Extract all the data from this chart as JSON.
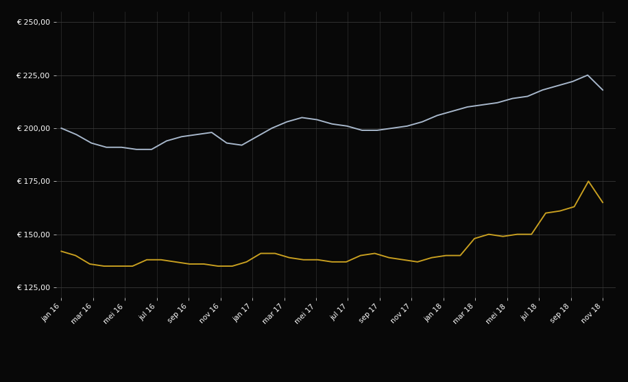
{
  "bg_color": "#080808",
  "plot_bg_color": "#080808",
  "grid_color": "#3a3a3a",
  "x_labels": [
    "jan 16",
    "mar 16",
    "mei 16",
    "jul 16",
    "sep 16",
    "nov 16",
    "jan 17",
    "mar 17",
    "mei 17",
    "jul 17",
    "sep 17",
    "nov 17",
    "jan 18",
    "mar 18",
    "mei 18",
    "jul 18",
    "sep 18",
    "nov 18"
  ],
  "blue_line": [
    200,
    197,
    193,
    191,
    191,
    190,
    190,
    194,
    196,
    197,
    198,
    193,
    192,
    196,
    200,
    203,
    205,
    204,
    202,
    201,
    199,
    199,
    200,
    201,
    203,
    206,
    208,
    210,
    211,
    212,
    214,
    215,
    218,
    220,
    222,
    225,
    218
  ],
  "gold_line": [
    142,
    140,
    136,
    135,
    135,
    135,
    138,
    138,
    137,
    136,
    136,
    135,
    135,
    137,
    141,
    141,
    139,
    138,
    138,
    137,
    137,
    140,
    141,
    139,
    138,
    137,
    139,
    140,
    140,
    148,
    150,
    149,
    150,
    150,
    160,
    161,
    163,
    175,
    165
  ],
  "blue_color": "#a8b8cc",
  "gold_color": "#c9a020",
  "ylim_min": 120,
  "ylim_max": 255,
  "yticks": [
    125,
    150,
    175,
    200,
    225,
    250
  ]
}
